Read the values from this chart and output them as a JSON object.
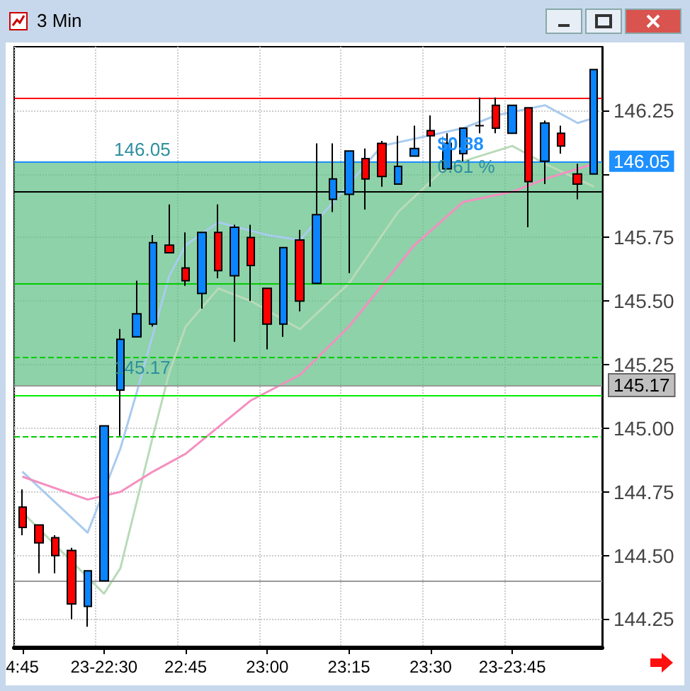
{
  "chart_data": {
    "type": "candlestick",
    "title": "3 Min",
    "categories": [
      "4:45",
      null,
      null,
      null,
      null,
      "23-22:30",
      null,
      null,
      null,
      null,
      "22:45",
      null,
      null,
      null,
      null,
      "23:00",
      null,
      null,
      null,
      null,
      "23:15",
      null,
      null,
      null,
      null,
      "23:30",
      null,
      null,
      null,
      null,
      "23-23:45",
      null,
      null,
      null,
      null,
      null
    ],
    "series": [
      {
        "type": "line",
        "color": "#a9cbef",
        "values": [
          144.83,
          null,
          null,
          null,
          144.59,
          null,
          144.92,
          145.14,
          null,
          145.6,
          145.72,
          null,
          145.81,
          null,
          null,
          145.76,
          null,
          145.74,
          null,
          null,
          145.96,
          null,
          146.11,
          null,
          null,
          null,
          null,
          146.18,
          null,
          146.23,
          null,
          null,
          146.27,
          null,
          146.2,
          146.22
        ]
      },
      {
        "type": "line",
        "color": "#b9dab9",
        "values": [
          144.67,
          null,
          null,
          null,
          null,
          144.35,
          144.45,
          null,
          144.97,
          145.22,
          145.4,
          null,
          145.55,
          null,
          145.5,
          null,
          null,
          145.39,
          null,
          null,
          145.57,
          null,
          null,
          145.85,
          null,
          null,
          146.03,
          null,
          null,
          null,
          146.11,
          null,
          146.04,
          null,
          null,
          145.95
        ]
      },
      {
        "type": "line",
        "color": "#f48fc0",
        "values": [
          144.81,
          null,
          null,
          null,
          144.72,
          null,
          144.75,
          null,
          144.83,
          null,
          144.9,
          null,
          null,
          null,
          145.11,
          null,
          null,
          145.21,
          null,
          null,
          145.4,
          null,
          null,
          null,
          145.72,
          null,
          null,
          145.89,
          null,
          null,
          145.93,
          null,
          145.98,
          null,
          null,
          146.04
        ]
      },
      {
        "type": "candlestick",
        "colors": [
          "#ff0000",
          "#ff0000",
          "#ff0000",
          "#ff0000",
          "#0a84ff",
          "#0a84ff",
          "#0a84ff",
          "#0a84ff",
          "#0a84ff",
          "#ff0000",
          "#ff0000",
          "#0a84ff",
          "#ff0000",
          "#0a84ff",
          "#ff0000",
          "#ff0000",
          "#0a84ff",
          "#ff0000",
          "#0a84ff",
          "#0a84ff",
          "#0a84ff",
          "#ff0000",
          "#ff0000",
          "#0a84ff",
          "#0a84ff",
          "#ff0000",
          "#0a84ff",
          "#0a84ff",
          "#000000",
          "#ff0000",
          "#0a84ff",
          "#ff0000",
          "#0a84ff",
          "#ff0000",
          "#ff0000",
          "#0a84ff"
        ],
        "ohlc": [
          [
            144.69,
            144.76,
            144.58,
            144.61
          ],
          [
            144.62,
            144.62,
            144.43,
            144.55
          ],
          [
            144.57,
            144.58,
            144.43,
            144.5
          ],
          [
            144.52,
            144.53,
            144.25,
            144.31
          ],
          [
            144.3,
            144.44,
            144.22,
            144.44
          ],
          [
            144.4,
            145.01,
            144.4,
            145.01
          ],
          [
            145.15,
            145.39,
            144.97,
            145.35
          ],
          [
            145.36,
            145.58,
            145.36,
            145.45
          ],
          [
            145.41,
            145.76,
            145.4,
            145.73
          ],
          [
            145.72,
            145.88,
            145.69,
            145.69
          ],
          [
            145.63,
            145.77,
            145.56,
            145.58
          ],
          [
            145.53,
            145.77,
            145.47,
            145.77
          ],
          [
            145.77,
            145.88,
            145.59,
            145.62
          ],
          [
            145.6,
            145.8,
            145.34,
            145.79
          ],
          [
            145.75,
            145.8,
            145.5,
            145.64
          ],
          [
            145.55,
            145.55,
            145.31,
            145.41
          ],
          [
            145.41,
            145.71,
            145.36,
            145.71
          ],
          [
            145.74,
            145.78,
            145.46,
            145.5
          ],
          [
            145.57,
            146.12,
            145.57,
            145.84
          ],
          [
            145.9,
            146.12,
            145.85,
            145.98
          ],
          [
            145.92,
            146.09,
            145.61,
            146.09
          ],
          [
            146.06,
            146.1,
            145.86,
            145.98
          ],
          [
            146.12,
            146.13,
            145.95,
            145.99
          ],
          [
            145.96,
            146.15,
            145.96,
            146.03
          ],
          [
            146.07,
            146.19,
            146.07,
            146.1
          ],
          [
            146.17,
            146.23,
            145.95,
            146.15
          ],
          [
            146.02,
            146.16,
            146.02,
            146.12
          ],
          [
            146.08,
            146.18,
            146.05,
            146.18
          ],
          [
            146.19,
            146.3,
            146.16,
            146.19
          ],
          [
            146.27,
            146.3,
            146.16,
            146.18
          ],
          [
            146.16,
            146.27,
            146.16,
            146.27
          ],
          [
            146.26,
            146.26,
            145.79,
            145.97
          ],
          [
            146.05,
            146.21,
            145.96,
            146.2
          ],
          [
            146.16,
            146.19,
            146.08,
            146.11
          ],
          [
            146.0,
            146.04,
            145.9,
            145.96
          ],
          [
            146.0,
            146.41,
            146.0,
            146.41
          ]
        ]
      }
    ],
    "ylim": [
      144.14,
      146.5
    ],
    "yticks": [
      144.25,
      {
        "value": 144.5,
        "label": "144.50"
      },
      144.75,
      {
        "value": 145,
        "label": "145.00"
      },
      145.25,
      {
        "value": 145.5,
        "label": "145.50"
      },
      145.75,
      {
        "value": 146,
        "label": null
      },
      146.25
    ],
    "grid": true,
    "bands": [
      {
        "axis": "y",
        "from": 145.17,
        "to": 146.05,
        "color": "#5dbf83"
      }
    ],
    "ref_lines": [
      {
        "axis": "y",
        "value": 146.3,
        "color": "#ff0000"
      },
      {
        "axis": "y",
        "value": 146.05,
        "label": "146.05",
        "color": "#1e90ff"
      },
      {
        "axis": "y",
        "value": 145.93,
        "color": "#000000"
      },
      {
        "axis": "y",
        "value": 145.57,
        "color": "#00cc00"
      },
      {
        "axis": "y",
        "value": 145.28,
        "color": "#00cc00",
        "line_style": "dashed"
      },
      {
        "axis": "y",
        "value": 145.17,
        "label": "145.17",
        "color": "#999999"
      },
      {
        "axis": "y",
        "value": 145.13,
        "color": "#00ee00"
      },
      {
        "axis": "y",
        "value": 144.97,
        "color": "#00cc00",
        "line_style": "dashed"
      },
      {
        "axis": "y",
        "value": 144.4,
        "color": "#999999"
      }
    ],
    "annotations": [
      {
        "text": "146.05",
        "y": 146.05
      },
      {
        "text": "145.17",
        "y": 145.17
      },
      {
        "text": "$0.88",
        "y": 146.05
      },
      {
        "text": "0.61 %",
        "y": 146.05
      }
    ]
  }
}
